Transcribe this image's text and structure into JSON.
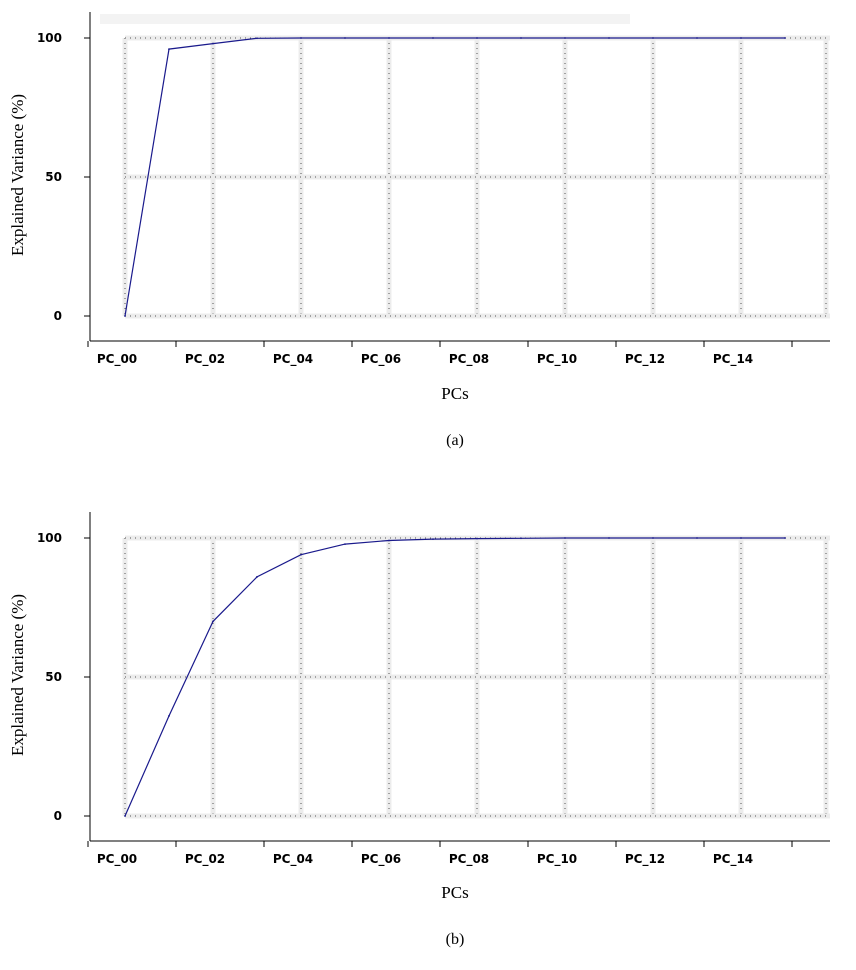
{
  "chart_data": [
    {
      "type": "line",
      "caption": "(a)",
      "xlabel": "PCs",
      "ylabel": "Explained Variance (%)",
      "categories": [
        "PC_00",
        "PC_01",
        "PC_02",
        "PC_03",
        "PC_04",
        "PC_05",
        "PC_06",
        "PC_07",
        "PC_08",
        "PC_09",
        "PC_10",
        "PC_11",
        "PC_12",
        "PC_13",
        "PC_14",
        "PC_15"
      ],
      "x_tick_labels": [
        "PC_00",
        "PC_02",
        "PC_04",
        "PC_06",
        "PC_08",
        "PC_10",
        "PC_12",
        "PC_14"
      ],
      "y_ticks": [
        0,
        50,
        100
      ],
      "ylim": [
        0,
        100
      ],
      "grid": true,
      "series": [
        {
          "values": [
            0,
            96,
            98,
            99.9,
            100,
            100,
            100,
            100,
            100,
            100,
            100,
            100,
            100,
            100,
            100,
            100
          ]
        }
      ]
    },
    {
      "type": "line",
      "caption": "(b)",
      "xlabel": "PCs",
      "ylabel": "Explained Variance (%)",
      "categories": [
        "PC_00",
        "PC_01",
        "PC_02",
        "PC_03",
        "PC_04",
        "PC_05",
        "PC_06",
        "PC_07",
        "PC_08",
        "PC_09",
        "PC_10",
        "PC_11",
        "PC_12",
        "PC_13",
        "PC_14",
        "PC_15"
      ],
      "x_tick_labels": [
        "PC_00",
        "PC_02",
        "PC_04",
        "PC_06",
        "PC_08",
        "PC_10",
        "PC_12",
        "PC_14"
      ],
      "y_ticks": [
        0,
        50,
        100
      ],
      "ylim": [
        0,
        100
      ],
      "grid": true,
      "series": [
        {
          "values": [
            0,
            36,
            70,
            86,
            94,
            97.8,
            99.1,
            99.6,
            99.8,
            99.9,
            100,
            100,
            100,
            100,
            100,
            100
          ]
        }
      ]
    }
  ]
}
